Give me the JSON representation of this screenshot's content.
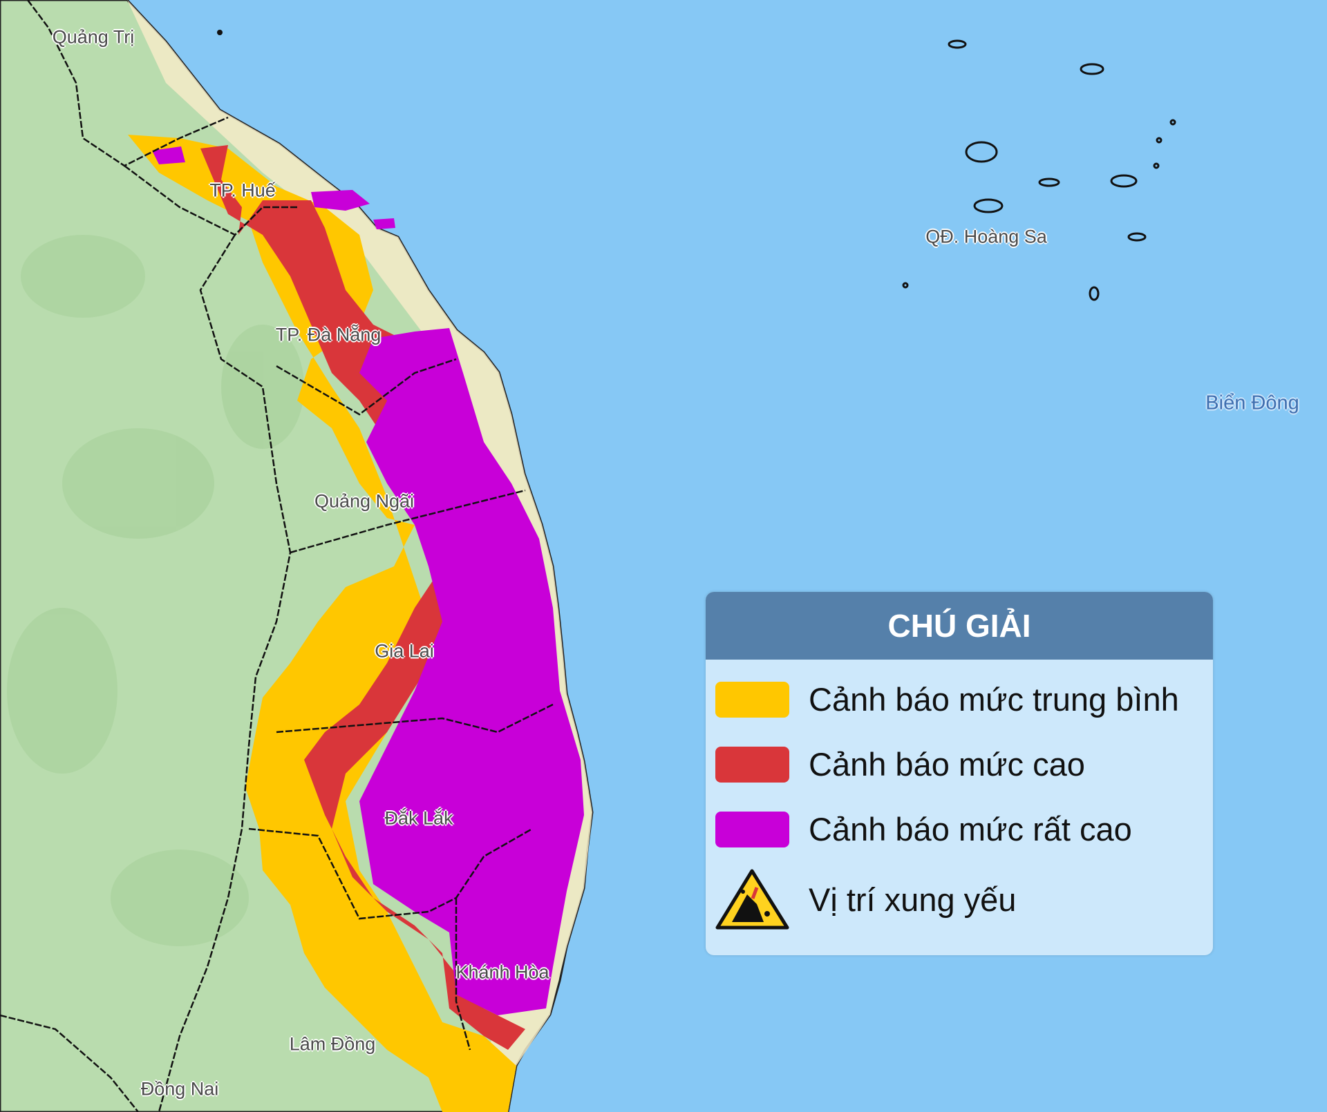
{
  "legend": {
    "title": "CHÚ GIẢI",
    "items": [
      {
        "label": "Cảnh báo mức trung bình",
        "color": "#ffc700"
      },
      {
        "label": "Cảnh báo mức cao",
        "color": "#d9363a"
      },
      {
        "label": "Cảnh báo mức rất cao",
        "color": "#c800d8"
      },
      {
        "label": "Vị trí xung yếu",
        "icon": "landslide-warning-icon"
      }
    ]
  },
  "places": {
    "quang_tri": "Quảng Trị",
    "hue": "TP. Huế",
    "da_nang": "TP. Đà Nẵng",
    "quang_ngai": "Quảng Ngãi",
    "gia_lai": "Gia Lai",
    "dak_lak": "Đắk Lắk",
    "khanh_hoa": "Khánh Hòa",
    "lam_dong": "Lâm Đồng",
    "dong_nai": "Đồng Nai",
    "hoang_sa": "QĐ. Hoàng Sa",
    "bien_dong": "Biển Đông"
  },
  "colors": {
    "sea": "#86c8f5",
    "land": "#b9dcae",
    "coast": "#f6ecc9"
  }
}
